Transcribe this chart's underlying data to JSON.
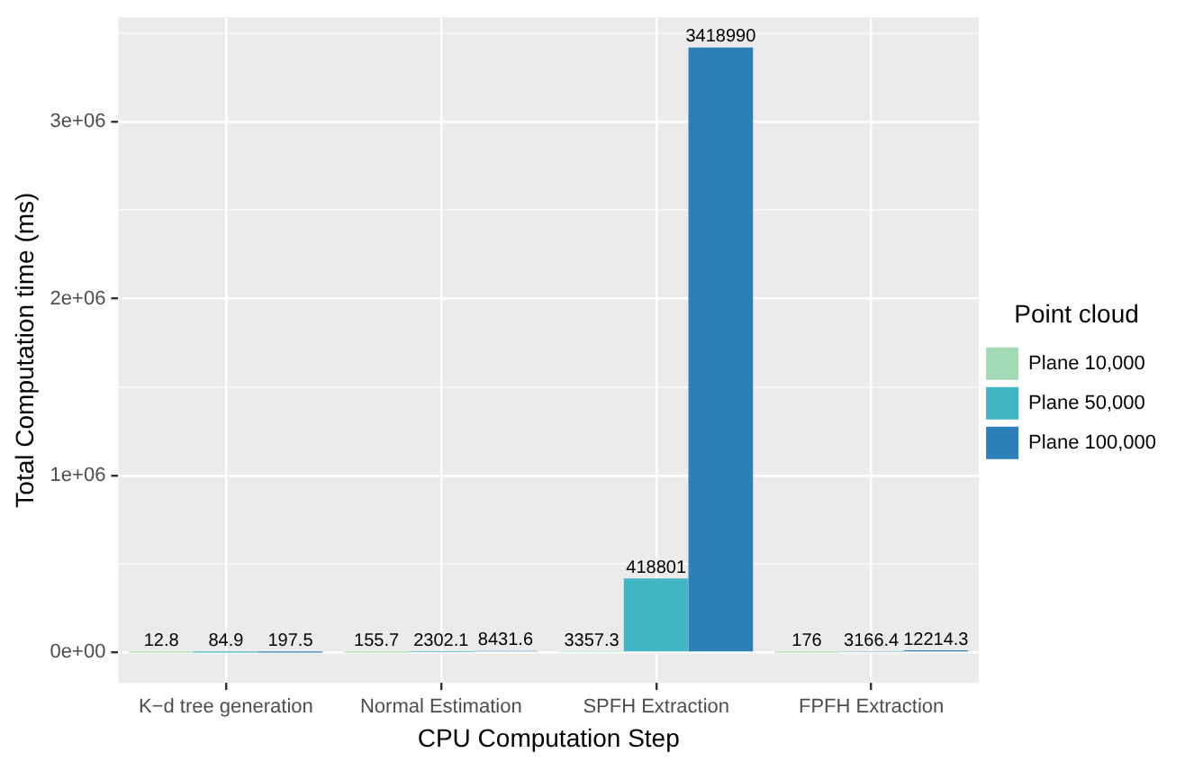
{
  "chart_data": {
    "type": "bar",
    "xlabel": "CPU Computation Step",
    "ylabel": "Total Computation time (ms)",
    "legend_title": "Point cloud",
    "categories": [
      "K−d tree generation",
      "Normal Estimation",
      "SPFH Extraction",
      "FPFH Extraction"
    ],
    "series": [
      {
        "name": "Plane 10,000",
        "color": "#a1dab4",
        "values": [
          12.8,
          155.7,
          3357.3,
          176
        ]
      },
      {
        "name": "Plane 50,000",
        "color": "#41b6c4",
        "values": [
          84.9,
          2302.1,
          418801,
          3166.4
        ]
      },
      {
        "name": "Plane 100,000",
        "color": "#2c7fb8",
        "values": [
          197.5,
          8431.6,
          3418990,
          12214.3
        ]
      }
    ],
    "ylim": [
      -170950,
      3589940
    ],
    "yticks": [
      {
        "value": 0,
        "label": "0e+00"
      },
      {
        "value": 500000,
        "label": null
      },
      {
        "value": 1000000,
        "label": "1e+06"
      },
      {
        "value": 1500000,
        "label": null
      },
      {
        "value": 2000000,
        "label": "2e+06"
      },
      {
        "value": 2500000,
        "label": null
      },
      {
        "value": 3000000,
        "label": "3e+06"
      },
      {
        "value": 3500000,
        "label": null
      }
    ],
    "grid": true,
    "legend": "right",
    "data_labels": true
  }
}
